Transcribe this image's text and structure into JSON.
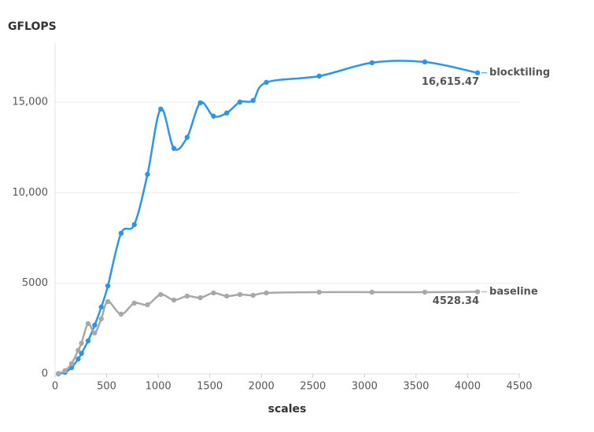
{
  "chart_data": {
    "type": "line",
    "title": "GFLOPS",
    "x_label": "scales",
    "x": [
      32,
      96,
      160,
      224,
      256,
      320,
      384,
      448,
      512,
      640,
      768,
      896,
      1024,
      1152,
      1280,
      1408,
      1536,
      1664,
      1792,
      1920,
      2048,
      2560,
      3072,
      3584,
      4096
    ],
    "series": [
      {
        "name": "blocktiling",
        "color": "#2b95ec",
        "values": [
          0,
          87,
          347,
          824,
          1127,
          1821,
          2689,
          3686,
          4857,
          7762,
          8239,
          11014,
          14614,
          12446,
          13053,
          14961,
          14224,
          14397,
          15004,
          15091,
          16088,
          16435,
          17172,
          17216,
          16615.47
        ],
        "value_labels": [
          null,
          null,
          null,
          null,
          null,
          null,
          null,
          null,
          null,
          null,
          null,
          null,
          null,
          null,
          null,
          null,
          null,
          null,
          null,
          null,
          null,
          null,
          null,
          null,
          "16,615.47"
        ]
      },
      {
        "name": "baseline",
        "color": "#a8a8a8",
        "values": [
          20,
          173,
          564,
          1301,
          1691,
          2775,
          2255,
          3036,
          3990,
          3296,
          3903,
          3816,
          4380,
          4076,
          4293,
          4206,
          4467,
          4293,
          4380,
          4337,
          4467,
          4510,
          4510,
          4510,
          4528.34
        ],
        "value_labels": [
          null,
          null,
          null,
          null,
          null,
          null,
          null,
          null,
          null,
          null,
          null,
          null,
          null,
          null,
          null,
          null,
          null,
          null,
          null,
          null,
          null,
          null,
          null,
          null,
          "4528.34"
        ]
      }
    ],
    "xlim": [
      0,
      4500
    ],
    "xticks": [
      0,
      500,
      1000,
      1500,
      2000,
      2500,
      3000,
      3500,
      4000,
      4500
    ],
    "ylim": [
      0,
      18250
    ],
    "yticks": [
      0,
      5000,
      {
        "value": 10000,
        "label": "10,000"
      },
      {
        "value": 15000,
        "label": "15,000"
      }
    ],
    "grid": true
  }
}
